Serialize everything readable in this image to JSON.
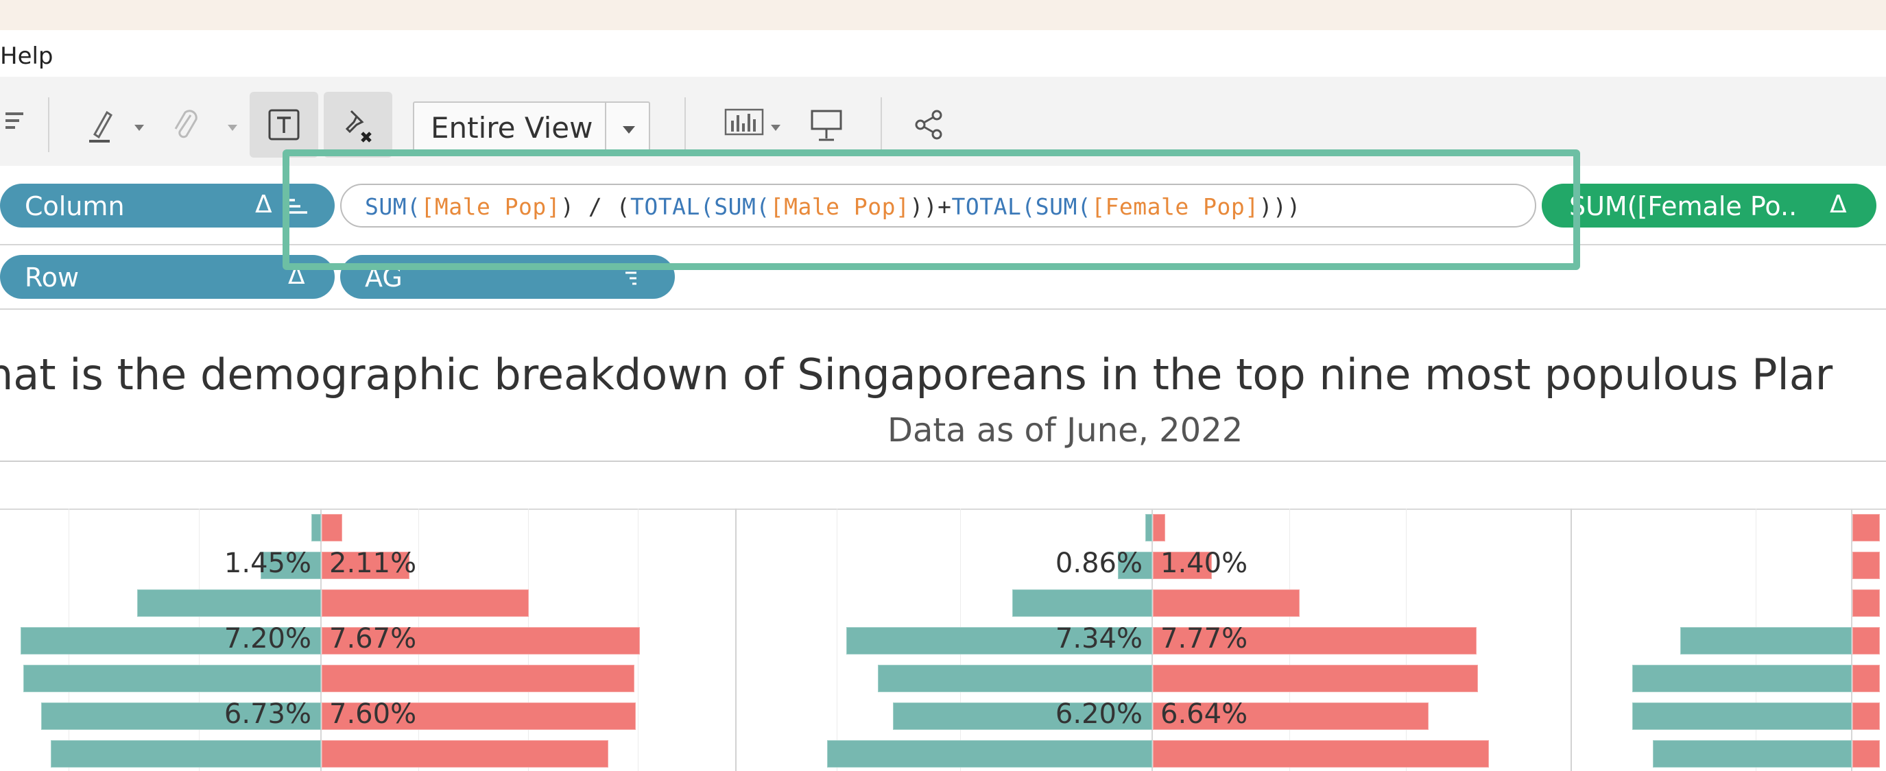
{
  "menu": {
    "help": "Help"
  },
  "toolbar": {
    "fit_select": "Entire View",
    "icons": [
      "sort-icon",
      "highlight-pen-icon",
      "attach-icon",
      "text-label-icon",
      "clear-pin-icon",
      "show-me-icon",
      "presentation-icon",
      "share-icon"
    ]
  },
  "shelves": {
    "columns": {
      "pill1": "Column",
      "pill1_marker": "Δ",
      "pill3": "SUM([Female Po..",
      "pill3_marker": "Δ"
    },
    "rows": {
      "pill1": "Row",
      "pill1_marker": "Δ",
      "pill2": "AG"
    }
  },
  "calc": {
    "t1": "SUM(",
    "t2": "[Male Pop]",
    "t3": ") / (",
    "t4": "TOTAL(SUM(",
    "t5": "[Male Pop]",
    "t6": "))+",
    "t7": "TOTAL(SUM(",
    "t8": "[Female Pop]",
    "t9": ")))"
  },
  "viz": {
    "title": "hat is the demographic breakdown of Singaporeans in the top nine most populous Plar",
    "subtitle": "Data as of June, 2022"
  },
  "chart_data": {
    "type": "bar",
    "panels": [
      {
        "labels": [
          {
            "male": "1.45%",
            "female": "2.11%"
          },
          {
            "male": "7.20%",
            "female": "7.67%"
          },
          {
            "male": "6.73%",
            "female": "7.60%"
          }
        ]
      },
      {
        "labels": [
          {
            "male": "0.86%",
            "female": "1.40%"
          },
          {
            "male": "7.34%",
            "female": "7.77%"
          },
          {
            "male": "6.20%",
            "female": "6.64%"
          }
        ]
      }
    ]
  },
  "colors": {
    "male": "#77b8b0",
    "female": "#f17b78",
    "accent_highlight": "#6dbfa4",
    "pill_blue": "#4a96b2",
    "pill_green": "#22a868"
  }
}
